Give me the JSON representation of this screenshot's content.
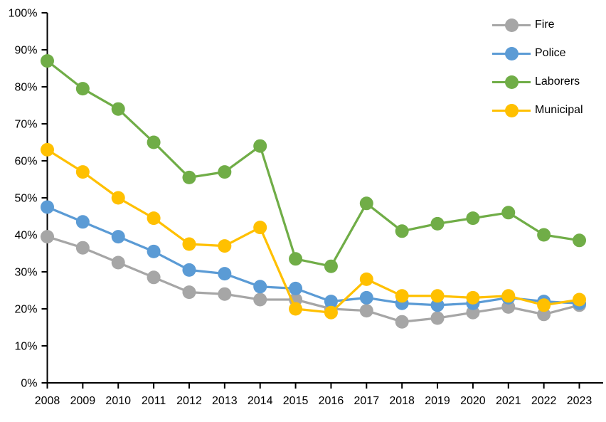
{
  "chart_data": {
    "type": "line",
    "title": "",
    "xlabel": "",
    "ylabel": "",
    "categories": [
      "2008",
      "2009",
      "2010",
      "2011",
      "2012",
      "2013",
      "2014",
      "2015",
      "2016",
      "2017",
      "2018",
      "2019",
      "2020",
      "2021",
      "2022",
      "2023"
    ],
    "series": [
      {
        "name": "Fire",
        "color": "#A6A6A6",
        "values": [
          39.5,
          36.5,
          32.5,
          28.5,
          24.5,
          24.0,
          22.5,
          22.5,
          20.0,
          19.5,
          16.5,
          17.5,
          19.0,
          20.5,
          18.5,
          21.0
        ]
      },
      {
        "name": "Police",
        "color": "#5B9BD5",
        "values": [
          47.5,
          43.5,
          39.5,
          35.5,
          30.5,
          29.5,
          26.0,
          25.5,
          22.0,
          23.0,
          21.5,
          21.0,
          21.5,
          23.0,
          22.0,
          21.5
        ]
      },
      {
        "name": "Laborers",
        "color": "#70AD47",
        "values": [
          87.0,
          79.5,
          74.0,
          65.0,
          55.5,
          57.0,
          64.0,
          33.5,
          31.5,
          48.5,
          41.0,
          43.0,
          44.5,
          46.0,
          40.0,
          38.5
        ]
      },
      {
        "name": "Municipal",
        "color": "#FFC000",
        "values": [
          63.0,
          57.0,
          50.0,
          44.5,
          37.5,
          37.0,
          42.0,
          20.0,
          19.0,
          28.0,
          23.5,
          23.5,
          23.0,
          23.5,
          21.0,
          22.5
        ]
      }
    ],
    "ylim": [
      0,
      100
    ],
    "ytick_step": 10,
    "ytick_labels": [
      "0%",
      "10%",
      "20%",
      "30%",
      "40%",
      "50%",
      "60%",
      "70%",
      "80%",
      "90%",
      "100%"
    ],
    "grid": false,
    "marker": "circle",
    "legend_position": "top-right",
    "axis_color": "#000000",
    "background_color": "#FFFFFF"
  }
}
